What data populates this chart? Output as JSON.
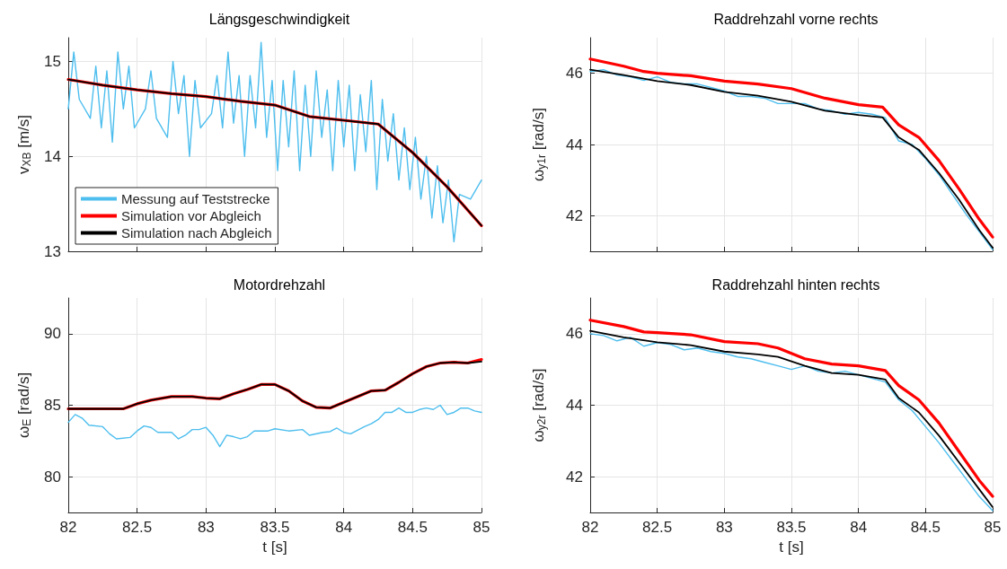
{
  "chart_data": [
    {
      "type": "line",
      "title": "Längsgeschwindigkeit",
      "ylabel": "v$_{XB}$ [m/s]",
      "xlim": [
        82,
        85
      ],
      "ylim": [
        13,
        15.25
      ],
      "xticks": [
        82,
        82.5,
        83,
        83.5,
        84,
        84.5,
        85
      ],
      "yticks": [
        13,
        14,
        15
      ],
      "grid": true,
      "tick_labels": "y",
      "legend": "bottom left",
      "series": [
        {
          "name": "Messung auf Teststrecke",
          "color": "#4dbeee",
          "x": [
            82,
            82.04,
            82.08,
            82.12,
            82.16,
            82.2,
            82.24,
            82.28,
            82.32,
            82.36,
            82.4,
            82.44,
            82.48,
            82.52,
            82.56,
            82.6,
            82.64,
            82.68,
            82.72,
            82.76,
            82.8,
            82.84,
            82.88,
            82.92,
            82.96,
            83,
            83.04,
            83.08,
            83.12,
            83.16,
            83.2,
            83.24,
            83.28,
            83.32,
            83.36,
            83.4,
            83.44,
            83.48,
            83.52,
            83.56,
            83.6,
            83.64,
            83.68,
            83.72,
            83.76,
            83.8,
            83.84,
            83.88,
            83.92,
            83.96,
            84,
            84.04,
            84.08,
            84.12,
            84.16,
            84.2,
            84.24,
            84.28,
            84.32,
            84.36,
            84.4,
            84.44,
            84.48,
            84.52,
            84.56,
            84.6,
            84.64,
            84.68,
            84.72,
            84.76,
            84.8,
            84.84,
            84.88,
            84.92,
            84.96,
            85
          ],
          "values": [
            14.5,
            15.1,
            14.6,
            null,
            14.4,
            14.95,
            14.3,
            14.9,
            14.15,
            15.1,
            14.5,
            14.95,
            14.3,
            null,
            14.5,
            14.9,
            14.4,
            null,
            14.2,
            15.0,
            14.45,
            14.85,
            14.0,
            14.8,
            14.3,
            null,
            14.45,
            14.85,
            14.3,
            15.1,
            14.35,
            14.85,
            14.0,
            14.85,
            14.3,
            15.2,
            14.2,
            14.8,
            13.85,
            14.8,
            14.1,
            14.9,
            13.85,
            14.75,
            14.0,
            14.9,
            14.2,
            14.7,
            13.85,
            14.8,
            14.1,
            14.75,
            13.85,
            14.65,
            14.05,
            14.8,
            13.65,
            14.6,
            13.95,
            14.45,
            13.75,
            14.3,
            13.65,
            14.2,
            13.55,
            14.0,
            13.35,
            13.9,
            13.3,
            13.75,
            13.1,
            13.6,
            null,
            13.55,
            null,
            13.75
          ]
        },
        {
          "name": "Simulation vor Abgleich",
          "color": "#ff0000",
          "x": [
            82,
            82.25,
            82.5,
            82.75,
            83,
            83.25,
            83.5,
            83.75,
            84,
            84.25,
            84.5,
            84.75,
            85
          ],
          "values": [
            14.81,
            14.75,
            14.7,
            14.66,
            14.63,
            14.58,
            14.54,
            14.42,
            14.38,
            14.34,
            14.04,
            13.68,
            13.27
          ]
        },
        {
          "name": "Simulation nach Abgleich",
          "color": "#000000",
          "x": [
            82,
            82.25,
            82.5,
            82.75,
            83,
            83.25,
            83.5,
            83.75,
            84,
            84.25,
            84.5,
            84.75,
            85
          ],
          "values": [
            14.81,
            14.75,
            14.7,
            14.66,
            14.63,
            14.58,
            14.54,
            14.42,
            14.38,
            14.34,
            14.04,
            13.68,
            13.27
          ]
        }
      ]
    },
    {
      "type": "line",
      "title": "Raddrehzahl vorne rechts",
      "ylabel": "ω$_{y1r}$ [rad/s]",
      "xlim": [
        82,
        85
      ],
      "ylim": [
        41,
        47
      ],
      "xticks": [
        82,
        82.5,
        83,
        83.5,
        84,
        84.5,
        85
      ],
      "yticks": [
        42,
        44,
        46
      ],
      "grid": true,
      "tick_labels": "y",
      "series": [
        {
          "color": "#4dbeee",
          "x": [
            82,
            82.1,
            82.2,
            82.3,
            82.4,
            82.5,
            82.6,
            82.7,
            82.8,
            82.9,
            83,
            83.1,
            83.2,
            83.3,
            83.4,
            83.5,
            83.6,
            83.7,
            83.8,
            83.9,
            84,
            84.1,
            84.2,
            84.3,
            84.4,
            84.5,
            84.6,
            84.7,
            84.8,
            84.9,
            85
          ],
          "values": [
            46.05,
            46.1,
            45.95,
            45.9,
            45.8,
            45.9,
            45.75,
            45.7,
            45.7,
            45.6,
            45.5,
            45.35,
            45.35,
            45.3,
            45.15,
            45.15,
            45.15,
            45.0,
            44.95,
            44.85,
            44.9,
            44.85,
            44.75,
            44.1,
            44.0,
            43.6,
            43.15,
            42.6,
            42.05,
            41.55,
            41.05
          ]
        },
        {
          "color": "#ff0000",
          "x": [
            82,
            82.25,
            82.4,
            82.5,
            82.75,
            83,
            83.25,
            83.5,
            83.75,
            84,
            84.18,
            84.3,
            84.45,
            84.6,
            84.75,
            84.9,
            85
          ],
          "values": [
            46.4,
            46.2,
            46.05,
            46.0,
            45.93,
            45.78,
            45.7,
            45.57,
            45.3,
            45.12,
            45.05,
            44.55,
            44.2,
            43.55,
            42.75,
            41.9,
            41.4
          ]
        },
        {
          "color": "#000000",
          "x": [
            82,
            82.25,
            82.5,
            82.75,
            83,
            83.25,
            83.5,
            83.75,
            84,
            84.18,
            84.3,
            84.45,
            84.6,
            84.75,
            84.9,
            85
          ],
          "values": [
            46.1,
            45.95,
            45.78,
            45.67,
            45.48,
            45.37,
            45.2,
            44.95,
            44.83,
            44.76,
            44.2,
            43.85,
            43.2,
            42.45,
            41.6,
            41.1
          ]
        }
      ]
    },
    {
      "type": "line",
      "title": "Motordrehzahl",
      "xlabel": "t [s]",
      "ylabel": "ω$_{E}$ [rad/s]",
      "xlim": [
        82,
        85
      ],
      "ylim": [
        77.5,
        92.5
      ],
      "xticks": [
        82,
        82.5,
        83,
        83.5,
        84,
        84.5,
        85
      ],
      "yticks": [
        80,
        85,
        90
      ],
      "grid": true,
      "series": [
        {
          "color": "#4dbeee",
          "x": [
            82,
            82.05,
            82.1,
            82.15,
            82.25,
            82.3,
            82.35,
            82.45,
            82.5,
            82.55,
            82.6,
            82.65,
            82.75,
            82.8,
            82.85,
            82.9,
            82.95,
            83,
            83.05,
            83.1,
            83.15,
            83.2,
            83.25,
            83.3,
            83.35,
            83.45,
            83.5,
            83.6,
            83.7,
            83.75,
            83.85,
            83.9,
            83.95,
            84,
            84.05,
            84.15,
            84.2,
            84.25,
            84.3,
            84.35,
            84.4,
            84.45,
            84.5,
            84.55,
            84.6,
            84.65,
            84.7,
            84.75,
            84.8,
            84.85,
            84.9,
            84.95,
            85
          ],
          "values": [
            83.8,
            84.35,
            84.1,
            83.6,
            83.5,
            83.0,
            82.65,
            82.75,
            83.2,
            83.55,
            83.45,
            83.1,
            83.1,
            82.65,
            82.9,
            83.3,
            83.3,
            83.45,
            82.9,
            82.1,
            82.9,
            82.8,
            82.65,
            82.8,
            83.2,
            83.2,
            83.35,
            83.2,
            83.3,
            82.9,
            83.1,
            83.15,
            83.4,
            83.1,
            83.0,
            83.5,
            83.7,
            84.0,
            84.5,
            84.5,
            84.8,
            84.5,
            84.5,
            84.7,
            84.8,
            84.7,
            85.0,
            84.35,
            84.5,
            84.8,
            84.8,
            84.6,
            84.5
          ]
        },
        {
          "color": "#ff0000",
          "x": [
            82,
            82.4,
            82.5,
            82.6,
            82.75,
            82.9,
            83,
            83.1,
            83.2,
            83.3,
            83.4,
            83.5,
            83.6,
            83.7,
            83.8,
            83.9,
            84,
            84.1,
            84.2,
            84.3,
            84.4,
            84.5,
            84.6,
            84.7,
            84.8,
            84.9,
            85
          ],
          "values": [
            84.75,
            84.75,
            85.1,
            85.35,
            85.6,
            85.6,
            85.5,
            85.45,
            85.8,
            86.1,
            86.45,
            86.45,
            86.0,
            85.3,
            84.85,
            84.8,
            85.2,
            85.6,
            86.0,
            86.05,
            86.6,
            87.2,
            87.7,
            87.95,
            88.0,
            87.95,
            88.2
          ]
        },
        {
          "color": "#000000",
          "x": [
            82,
            82.4,
            82.5,
            82.6,
            82.75,
            82.9,
            83,
            83.1,
            83.2,
            83.3,
            83.4,
            83.5,
            83.6,
            83.7,
            83.8,
            83.9,
            84,
            84.1,
            84.2,
            84.3,
            84.4,
            84.5,
            84.6,
            84.7,
            84.8,
            84.9,
            85
          ],
          "values": [
            84.75,
            84.75,
            85.1,
            85.35,
            85.6,
            85.6,
            85.5,
            85.45,
            85.8,
            86.1,
            86.45,
            86.45,
            86.0,
            85.3,
            84.85,
            84.8,
            85.2,
            85.6,
            86.0,
            86.05,
            86.6,
            87.2,
            87.7,
            87.95,
            88.0,
            87.95,
            88.05
          ]
        }
      ]
    },
    {
      "type": "line",
      "title": "Raddrehzahl hinten rechts",
      "xlabel": "t [s]",
      "ylabel": "ω$_{y2r}$ [rad/s]",
      "xlim": [
        82,
        85
      ],
      "ylim": [
        41,
        47
      ],
      "xticks": [
        82,
        82.5,
        83,
        83.5,
        84,
        84.5,
        85
      ],
      "yticks": [
        42,
        44,
        46
      ],
      "grid": true,
      "series": [
        {
          "color": "#4dbeee",
          "x": [
            82,
            82.1,
            82.2,
            82.3,
            82.4,
            82.5,
            82.6,
            82.7,
            82.8,
            82.9,
            83,
            83.1,
            83.2,
            83.3,
            83.4,
            83.5,
            83.6,
            83.7,
            83.8,
            83.9,
            84,
            84.1,
            84.2,
            84.3,
            84.4,
            84.5,
            84.6,
            84.7,
            84.8,
            84.9,
            85
          ],
          "values": [
            46.0,
            45.95,
            45.8,
            45.9,
            45.65,
            45.75,
            45.7,
            45.55,
            45.6,
            45.5,
            45.45,
            45.35,
            45.3,
            45.2,
            45.1,
            45.0,
            45.1,
            44.95,
            44.9,
            44.95,
            44.85,
            44.75,
            44.65,
            44.15,
            43.85,
            43.4,
            42.95,
            42.45,
            41.95,
            41.45,
            41.05
          ]
        },
        {
          "color": "#ff0000",
          "x": [
            82,
            82.25,
            82.4,
            82.5,
            82.75,
            83,
            83.25,
            83.4,
            83.6,
            83.8,
            84,
            84.2,
            84.3,
            84.45,
            84.6,
            84.75,
            84.9,
            85
          ],
          "values": [
            46.38,
            46.2,
            46.05,
            46.03,
            45.97,
            45.78,
            45.72,
            45.6,
            45.3,
            45.15,
            45.1,
            44.97,
            44.55,
            44.15,
            43.5,
            42.7,
            41.9,
            41.45
          ]
        },
        {
          "color": "#000000",
          "x": [
            82,
            82.25,
            82.5,
            82.75,
            83,
            83.25,
            83.4,
            83.6,
            83.8,
            84,
            84.2,
            84.3,
            84.45,
            84.6,
            84.75,
            84.9,
            85
          ],
          "values": [
            46.08,
            45.9,
            45.76,
            45.68,
            45.5,
            45.42,
            45.35,
            45.1,
            44.9,
            44.85,
            44.72,
            44.2,
            43.8,
            43.15,
            42.4,
            41.65,
            41.15
          ]
        }
      ]
    }
  ]
}
